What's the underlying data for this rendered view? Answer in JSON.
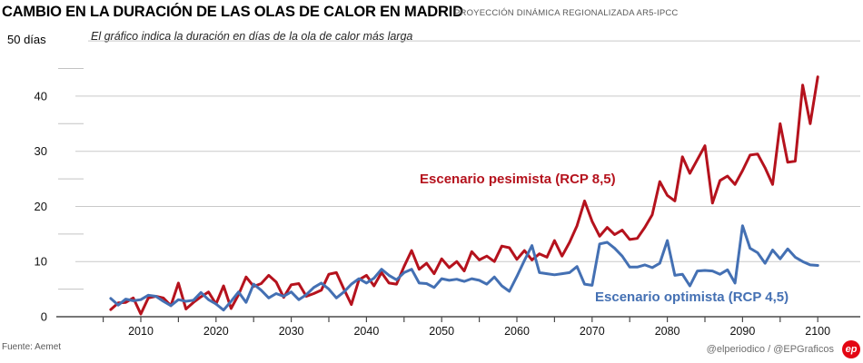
{
  "header": {
    "title": "CAMBIO EN LA DURACIÓN DE LAS OLAS DE CALOR EN MADRID",
    "kicker": "PROYECCIÓN DINÁMICA REGIONALIZADA AR5-IPCC"
  },
  "chart": {
    "unit_label": "50 días",
    "note": "El gráfico indica la duración en días de la ola de calor más larga"
  },
  "footer": {
    "source": "Fuente: Aemet",
    "credits": "@elperiodico / @EPGraficos",
    "logo_text": "ep",
    "logo_color": "#e30613"
  },
  "chart_data": {
    "type": "line",
    "title": "Cambio en la duración de las olas de calor en Madrid",
    "subtitle": "Proyección dinámica regionalizada AR5-IPCC",
    "xlabel": "",
    "ylabel": "días",
    "ylim": [
      0,
      50
    ],
    "xlim": [
      2005,
      2105
    ],
    "grid": true,
    "legend_position": "inline-annotations",
    "xticks": [
      2010,
      2020,
      2030,
      2040,
      2050,
      2060,
      2070,
      2080,
      2090,
      2100
    ],
    "yticks": [
      0,
      10,
      20,
      30,
      40
    ],
    "ytick_top_label": "50 días",
    "x": [
      2006,
      2007,
      2008,
      2009,
      2010,
      2011,
      2012,
      2013,
      2014,
      2015,
      2016,
      2017,
      2018,
      2019,
      2020,
      2021,
      2022,
      2023,
      2024,
      2025,
      2026,
      2027,
      2028,
      2029,
      2030,
      2031,
      2032,
      2033,
      2034,
      2035,
      2036,
      2037,
      2038,
      2039,
      2040,
      2041,
      2042,
      2043,
      2044,
      2045,
      2046,
      2047,
      2048,
      2049,
      2050,
      2051,
      2052,
      2053,
      2054,
      2055,
      2056,
      2057,
      2058,
      2059,
      2060,
      2061,
      2062,
      2063,
      2064,
      2065,
      2066,
      2067,
      2068,
      2069,
      2070,
      2071,
      2072,
      2073,
      2074,
      2075,
      2076,
      2077,
      2078,
      2079,
      2080,
      2081,
      2082,
      2083,
      2084,
      2085,
      2086,
      2087,
      2088,
      2089,
      2090,
      2091,
      2092,
      2093,
      2094,
      2095,
      2096,
      2097,
      2098,
      2099,
      2100
    ],
    "series": [
      {
        "name": "Escenario pesimista (RCP 8,5)",
        "color": "#b5121d",
        "values": [
          1.3,
          2.5,
          2.6,
          3.4,
          0.5,
          3.4,
          3.7,
          3.4,
          2.0,
          6.1,
          1.4,
          2.6,
          3.6,
          4.5,
          2.3,
          5.6,
          1.5,
          4.0,
          7.2,
          5.5,
          6.0,
          7.5,
          6.3,
          3.5,
          5.8,
          6.0,
          3.7,
          4.2,
          4.8,
          7.7,
          8.0,
          5.0,
          2.2,
          6.7,
          7.5,
          5.6,
          8.0,
          6.1,
          5.9,
          9.1,
          12.0,
          8.6,
          9.7,
          7.8,
          10.5,
          8.9,
          10.0,
          8.3,
          11.8,
          10.3,
          11.0,
          10.0,
          12.8,
          12.5,
          10.4,
          12.0,
          10.3,
          11.4,
          10.8,
          13.8,
          11.0,
          13.5,
          16.5,
          21.0,
          17.3,
          14.6,
          16.2,
          14.9,
          15.7,
          14.0,
          14.2,
          16.2,
          18.5,
          24.5,
          22.0,
          21.0,
          29.0,
          26.0,
          28.5,
          31.0,
          20.6,
          24.7,
          25.5,
          24.0,
          26.5,
          29.3,
          29.5,
          27.0,
          24.0,
          35.0,
          28.0,
          28.2,
          42.0,
          35.0,
          43.5
        ]
      },
      {
        "name": "Escenario optimista (RCP 4,5)",
        "color": "#4470b3",
        "values": [
          3.3,
          2.1,
          3.2,
          2.9,
          3.1,
          3.9,
          3.7,
          2.8,
          2.0,
          3.1,
          2.8,
          3.0,
          4.4,
          3.1,
          2.3,
          1.2,
          2.8,
          4.5,
          2.6,
          5.9,
          4.8,
          3.4,
          4.2,
          3.7,
          4.5,
          3.1,
          4.0,
          5.3,
          6.1,
          5.0,
          3.4,
          4.5,
          5.9,
          6.9,
          6.1,
          7.0,
          8.6,
          7.5,
          6.7,
          8.0,
          8.6,
          6.1,
          6.0,
          5.3,
          6.9,
          6.6,
          6.8,
          6.4,
          6.9,
          6.6,
          5.9,
          7.2,
          5.6,
          4.6,
          7.3,
          10.2,
          12.9,
          8.0,
          7.8,
          7.6,
          7.8,
          8.0,
          9.1,
          5.9,
          5.7,
          13.2,
          13.5,
          12.4,
          11.0,
          9.0,
          9.0,
          9.4,
          8.9,
          9.7,
          13.8,
          7.5,
          7.7,
          5.6,
          8.3,
          8.4,
          8.3,
          7.7,
          8.5,
          6.1,
          16.5,
          12.4,
          11.6,
          9.7,
          12.1,
          10.5,
          12.3,
          10.8,
          10.0,
          9.4,
          9.3
        ]
      }
    ]
  }
}
